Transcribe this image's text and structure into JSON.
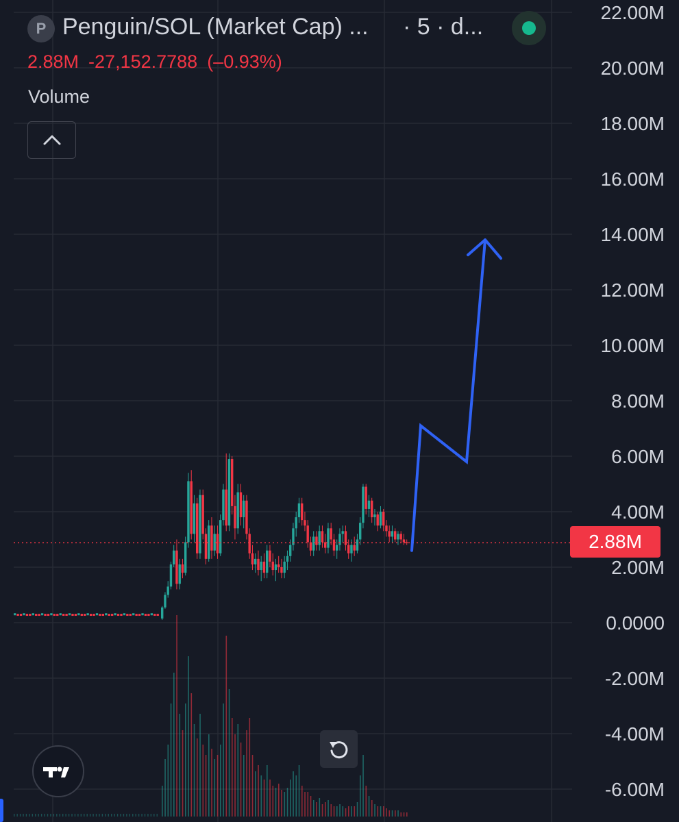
{
  "header": {
    "symbol_badge": "P",
    "title": "Penguin/SOL (Market Cap) ...",
    "interval": "· 5 · d...",
    "last_value": "2.88M",
    "change": "-27,152.7788",
    "change_pct": "(–0.93%)",
    "volume_label": "Volume"
  },
  "colors": {
    "background": "#161a25",
    "grid": "#262a35",
    "up": "#26a69a",
    "down": "#f23645",
    "drawing": "#2f62f5",
    "axis_text": "#d1d4dc"
  },
  "icons": {
    "collapse": "chevron-up-icon",
    "reset": "rotate-ccw-icon",
    "logo": "tradingview-logo-icon",
    "status": "live-dot-icon"
  },
  "price_tag": "2.88M",
  "chart_data": {
    "type": "candlestick",
    "y_axis_labels": [
      "22.00M",
      "20.00M",
      "18.00M",
      "16.00M",
      "14.00M",
      "12.00M",
      "10.00M",
      "8.00M",
      "6.00M",
      "4.00M",
      "2.00M",
      "0.0000",
      "-2.00M",
      "-4.00M",
      "-6.00M"
    ],
    "ylim": [
      -6.6,
      22.5
    ],
    "ylabel_unit": "M",
    "last_price": 2.88,
    "grid": true,
    "flat_segment": {
      "bars": 48,
      "level": 0.3
    },
    "candles": [
      [
        0.15,
        0.6,
        0.1,
        0.55
      ],
      [
        0.55,
        1.1,
        0.5,
        1.0
      ],
      [
        1.0,
        1.5,
        0.9,
        1.3
      ],
      [
        1.3,
        2.2,
        1.2,
        2.1
      ],
      [
        2.1,
        2.8,
        2.0,
        2.6
      ],
      [
        2.6,
        3.0,
        1.2,
        1.4
      ],
      [
        1.4,
        2.3,
        1.2,
        2.1
      ],
      [
        2.1,
        2.3,
        1.6,
        1.8
      ],
      [
        1.8,
        3.1,
        1.7,
        2.9
      ],
      [
        2.9,
        5.4,
        2.7,
        5.1
      ],
      [
        5.1,
        5.5,
        3.0,
        3.2
      ],
      [
        3.2,
        4.6,
        2.9,
        4.3
      ],
      [
        4.3,
        4.5,
        2.3,
        2.5
      ],
      [
        2.5,
        4.8,
        2.3,
        4.6
      ],
      [
        4.6,
        4.8,
        3.0,
        3.2
      ],
      [
        3.2,
        3.4,
        2.1,
        2.3
      ],
      [
        2.3,
        3.7,
        2.2,
        3.5
      ],
      [
        3.5,
        3.8,
        2.3,
        2.6
      ],
      [
        2.6,
        3.5,
        2.4,
        3.2
      ],
      [
        3.2,
        3.5,
        2.3,
        2.5
      ],
      [
        2.5,
        3.9,
        2.4,
        3.7
      ],
      [
        3.7,
        5.0,
        3.5,
        4.8
      ],
      [
        4.8,
        6.1,
        3.3,
        3.5
      ],
      [
        3.5,
        6.1,
        3.3,
        5.9
      ],
      [
        5.9,
        6.0,
        3.9,
        4.2
      ],
      [
        4.2,
        4.6,
        3.0,
        3.4
      ],
      [
        3.4,
        5.0,
        3.2,
        4.7
      ],
      [
        4.7,
        5.0,
        3.5,
        3.8
      ],
      [
        3.8,
        4.6,
        3.4,
        4.4
      ],
      [
        4.4,
        4.6,
        3.0,
        3.2
      ],
      [
        3.2,
        3.4,
        2.3,
        2.5
      ],
      [
        2.5,
        2.8,
        1.9,
        2.1
      ],
      [
        2.1,
        2.5,
        1.8,
        2.3
      ],
      [
        2.3,
        2.6,
        1.7,
        1.9
      ],
      [
        1.9,
        2.4,
        1.5,
        2.2
      ],
      [
        2.2,
        2.5,
        1.6,
        1.8
      ],
      [
        1.8,
        2.8,
        1.6,
        2.6
      ],
      [
        2.6,
        2.8,
        2.0,
        2.2
      ],
      [
        2.2,
        2.5,
        1.7,
        1.9
      ],
      [
        1.9,
        2.3,
        1.5,
        2.1
      ],
      [
        2.1,
        2.4,
        1.8,
        2.0
      ],
      [
        2.0,
        2.3,
        1.6,
        1.8
      ],
      [
        1.8,
        2.4,
        1.6,
        2.2
      ],
      [
        2.2,
        2.6,
        1.9,
        2.4
      ],
      [
        2.4,
        3.0,
        2.2,
        2.8
      ],
      [
        2.8,
        3.6,
        2.6,
        3.4
      ],
      [
        3.4,
        4.0,
        3.1,
        3.8
      ],
      [
        3.8,
        4.5,
        3.6,
        4.3
      ],
      [
        4.3,
        4.5,
        3.5,
        3.7
      ],
      [
        3.7,
        4.0,
        3.3,
        3.5
      ],
      [
        3.5,
        3.7,
        2.7,
        2.9
      ],
      [
        2.9,
        3.1,
        2.4,
        2.6
      ],
      [
        2.6,
        3.3,
        2.4,
        3.1
      ],
      [
        3.1,
        3.3,
        2.6,
        2.8
      ],
      [
        2.8,
        3.5,
        2.6,
        3.3
      ],
      [
        3.3,
        3.5,
        2.7,
        2.9
      ],
      [
        2.9,
        3.2,
        2.5,
        2.7
      ],
      [
        2.7,
        3.6,
        2.5,
        3.4
      ],
      [
        3.4,
        3.6,
        2.8,
        3.0
      ],
      [
        3.0,
        3.2,
        2.4,
        2.6
      ],
      [
        2.6,
        3.0,
        2.3,
        2.8
      ],
      [
        2.8,
        3.4,
        2.6,
        3.2
      ],
      [
        3.2,
        3.5,
        2.9,
        3.3
      ],
      [
        3.3,
        3.5,
        2.6,
        2.8
      ],
      [
        2.8,
        3.0,
        2.3,
        2.5
      ],
      [
        2.5,
        3.0,
        2.2,
        2.8
      ],
      [
        2.8,
        3.1,
        2.4,
        2.6
      ],
      [
        2.6,
        3.2,
        2.5,
        3.0
      ],
      [
        3.0,
        3.8,
        2.8,
        3.6
      ],
      [
        3.6,
        5.0,
        3.4,
        4.9
      ],
      [
        4.9,
        5.0,
        3.9,
        4.1
      ],
      [
        4.1,
        4.6,
        3.8,
        4.4
      ],
      [
        4.4,
        4.5,
        3.6,
        3.8
      ],
      [
        3.8,
        4.1,
        3.5,
        3.9
      ],
      [
        3.9,
        4.0,
        3.3,
        3.5
      ],
      [
        3.5,
        4.2,
        3.4,
        4.0
      ],
      [
        4.0,
        4.1,
        3.3,
        3.5
      ],
      [
        3.5,
        3.7,
        3.1,
        3.3
      ],
      [
        3.3,
        3.5,
        2.9,
        3.1
      ],
      [
        3.1,
        3.5,
        2.9,
        3.3
      ],
      [
        3.3,
        3.4,
        2.9,
        3.0
      ],
      [
        3.0,
        3.3,
        2.8,
        3.2
      ],
      [
        3.2,
        3.3,
        2.9,
        3.0
      ],
      [
        3.0,
        3.2,
        2.8,
        2.9
      ],
      [
        2.9,
        3.0,
        2.8,
        2.88
      ]
    ],
    "volume_rel": [
      0.15,
      0.28,
      0.35,
      0.55,
      0.7,
      0.98,
      0.5,
      0.42,
      0.55,
      0.78,
      0.6,
      0.45,
      0.38,
      0.5,
      0.35,
      0.3,
      0.4,
      0.33,
      0.28,
      0.3,
      0.35,
      0.55,
      0.88,
      0.62,
      0.48,
      0.4,
      0.45,
      0.36,
      0.3,
      0.42,
      0.48,
      0.3,
      0.22,
      0.25,
      0.2,
      0.18,
      0.25,
      0.18,
      0.15,
      0.14,
      0.16,
      0.13,
      0.12,
      0.14,
      0.18,
      0.22,
      0.2,
      0.25,
      0.15,
      0.12,
      0.12,
      0.1,
      0.08,
      0.07,
      0.09,
      0.06,
      0.07,
      0.08,
      0.06,
      0.05,
      0.05,
      0.06,
      0.05,
      0.04,
      0.05,
      0.05,
      0.05,
      0.07,
      0.2,
      0.3,
      0.15,
      0.1,
      0.08,
      0.06,
      0.05,
      0.05,
      0.05,
      0.04,
      0.03,
      0.03,
      0.03,
      0.03,
      0.02,
      0.02,
      0.02
    ],
    "drawing": {
      "type": "polyline-arrow",
      "points_value": [
        [
          0.0,
          2.6
        ],
        [
          0.0,
          7.1
        ],
        [
          0.0,
          5.8
        ],
        [
          0.0,
          13.8
        ]
      ]
    }
  }
}
